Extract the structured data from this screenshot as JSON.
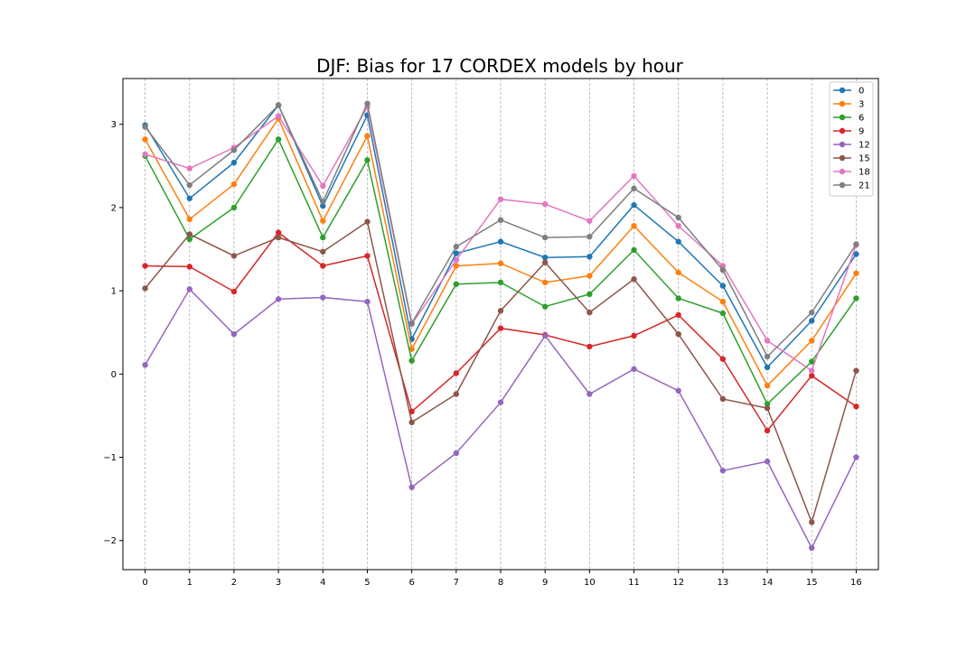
{
  "chart_data": {
    "type": "line",
    "title": "DJF: Bias for 17 CORDEX models by hour",
    "xlabel": "",
    "ylabel": "",
    "x": [
      0,
      1,
      2,
      3,
      4,
      5,
      6,
      7,
      8,
      9,
      10,
      11,
      12,
      13,
      14,
      15,
      16
    ],
    "x_tick_labels": [
      "0",
      "1",
      "2",
      "3",
      "4",
      "5",
      "6",
      "7",
      "8",
      "9",
      "10",
      "11",
      "12",
      "13",
      "14",
      "15",
      "16"
    ],
    "xlim": [
      -0.5,
      16.5
    ],
    "ylim": [
      -2.35,
      3.55
    ],
    "y_ticks": [
      -2,
      -1,
      0,
      1,
      2,
      3
    ],
    "y_tick_labels": [
      "−2",
      "−1",
      "0",
      "1",
      "2",
      "3"
    ],
    "grid": {
      "x": true,
      "y": false,
      "style": "dashed"
    },
    "legend_position": "top-right",
    "series": [
      {
        "name": "0",
        "color": "#1f77b4",
        "values": [
          2.99,
          2.11,
          2.54,
          3.23,
          2.02,
          3.11,
          0.42,
          1.45,
          1.59,
          1.4,
          1.41,
          2.03,
          1.59,
          1.06,
          0.08,
          0.64,
          1.44
        ]
      },
      {
        "name": "3",
        "color": "#ff7f0e",
        "values": [
          2.82,
          1.86,
          2.28,
          3.07,
          1.84,
          2.86,
          0.3,
          1.3,
          1.33,
          1.1,
          1.18,
          1.78,
          1.22,
          0.87,
          -0.14,
          0.4,
          1.21
        ]
      },
      {
        "name": "6",
        "color": "#2ca02c",
        "values": [
          2.62,
          1.62,
          2.0,
          2.82,
          1.64,
          2.57,
          0.16,
          1.08,
          1.1,
          0.81,
          0.96,
          1.49,
          0.91,
          0.73,
          -0.36,
          0.15,
          0.91
        ]
      },
      {
        "name": "9",
        "color": "#d62728",
        "values": [
          1.3,
          1.29,
          0.99,
          1.7,
          1.3,
          1.42,
          -0.45,
          0.01,
          0.55,
          0.47,
          0.33,
          0.46,
          0.71,
          0.18,
          -0.68,
          -0.02,
          -0.39
        ]
      },
      {
        "name": "12",
        "color": "#9467bd",
        "values": [
          0.11,
          1.02,
          0.48,
          0.9,
          0.92,
          0.87,
          -1.36,
          -0.95,
          -0.34,
          0.46,
          -0.24,
          0.06,
          -0.2,
          -1.16,
          -1.05,
          -2.09,
          -1.0
        ]
      },
      {
        "name": "15",
        "color": "#8c564b",
        "values": [
          1.03,
          1.68,
          1.42,
          1.64,
          1.47,
          1.83,
          -0.58,
          -0.24,
          0.76,
          1.34,
          0.74,
          1.14,
          0.48,
          -0.3,
          -0.41,
          -1.78,
          0.04
        ]
      },
      {
        "name": "18",
        "color": "#e377c2",
        "values": [
          2.64,
          2.47,
          2.72,
          3.1,
          2.26,
          3.21,
          0.6,
          1.37,
          2.1,
          2.04,
          1.84,
          2.38,
          1.78,
          1.3,
          0.4,
          0.04,
          1.55
        ]
      },
      {
        "name": "21",
        "color": "#7f7f7f",
        "values": [
          2.97,
          2.27,
          2.69,
          3.23,
          2.07,
          3.25,
          0.61,
          1.53,
          1.85,
          1.64,
          1.65,
          2.23,
          1.88,
          1.25,
          0.21,
          0.74,
          1.56
        ]
      }
    ]
  }
}
